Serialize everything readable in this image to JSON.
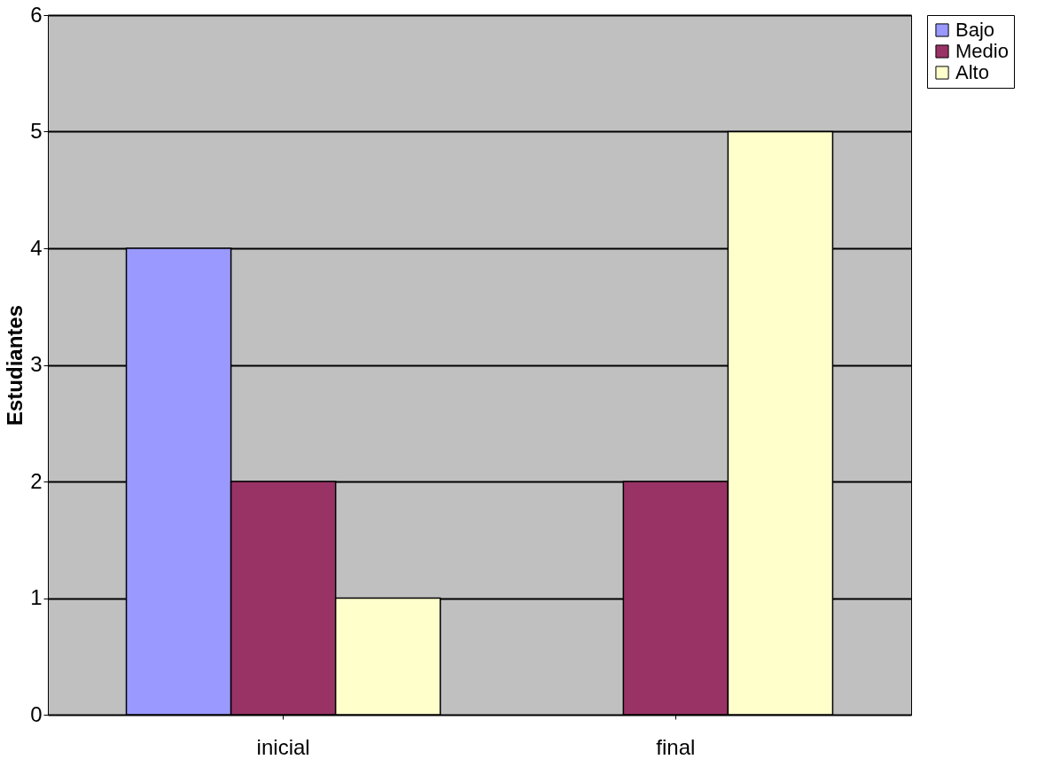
{
  "chart_data": {
    "type": "bar",
    "ylabel": "Estudiantes",
    "categories": [
      "inicial",
      "final"
    ],
    "series": [
      {
        "name": "Bajo",
        "color": "#9999ff",
        "values": [
          4,
          null
        ]
      },
      {
        "name": "Medio",
        "color": "#993366",
        "values": [
          2,
          2
        ]
      },
      {
        "name": "Alto",
        "color": "#ffffcc",
        "values": [
          1,
          5
        ]
      }
    ],
    "ylim": [
      0,
      6
    ],
    "yticks": [
      0,
      1,
      2,
      3,
      4,
      5,
      6
    ],
    "grid": "y",
    "legend": "right"
  }
}
